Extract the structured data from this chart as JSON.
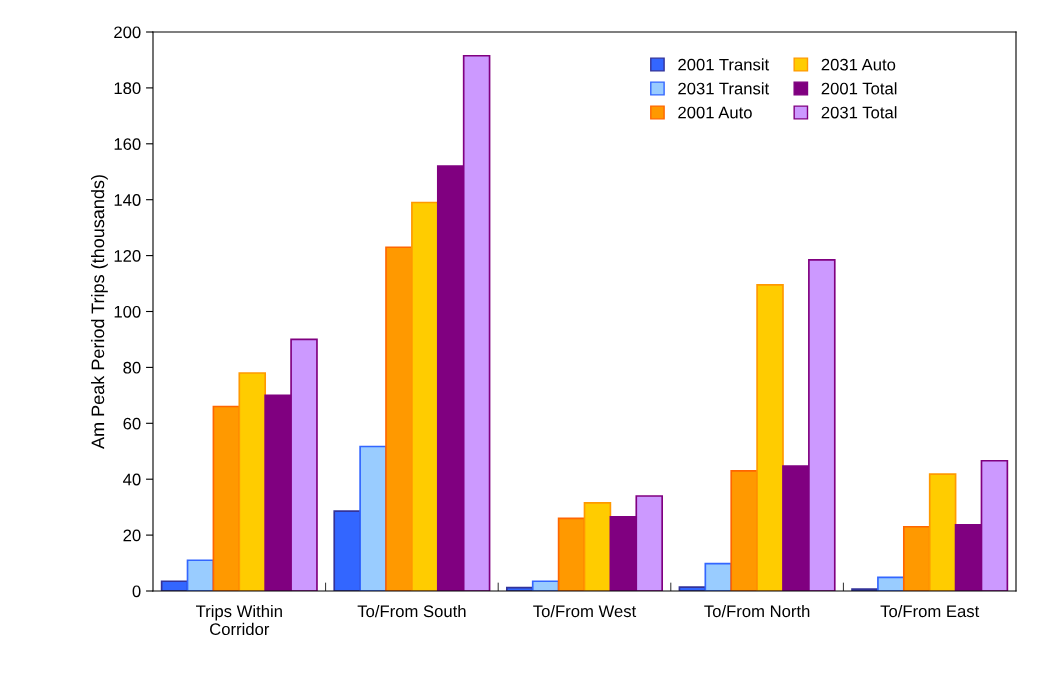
{
  "chart_data": {
    "type": "bar",
    "ylabel": "Am Peak Period Trips (thousands)",
    "categories": [
      "Trips Within\nCorridor",
      "To/From South",
      "To/From West",
      "To/From North",
      "To/From East"
    ],
    "series": [
      {
        "name": "2001 Transit",
        "color": "#3366ff",
        "values": [
          3.5,
          28.6,
          1.2,
          1.4,
          0.7
        ]
      },
      {
        "name": "2031 Transit",
        "color": "#99ccff",
        "values": [
          11,
          51.7,
          3.5,
          9.8,
          4.9
        ]
      },
      {
        "name": "2001 Auto",
        "color": "#ff9900",
        "values": [
          66,
          123,
          26,
          43,
          23
        ]
      },
      {
        "name": "2031 Auto",
        "color": "#ffcc00",
        "values": [
          78,
          139,
          31.5,
          109.5,
          41.8
        ]
      },
      {
        "name": "2001 Total",
        "color": "#800080",
        "values": [
          70,
          152,
          26.5,
          44.7,
          23.7
        ]
      },
      {
        "name": "2031 Total",
        "color": "#cc99ff",
        "values": [
          90,
          191.5,
          34,
          118.5,
          46.6
        ]
      }
    ],
    "ylim": [
      0,
      200
    ],
    "yticks": [
      0,
      20,
      40,
      60,
      80,
      100,
      120,
      140,
      160,
      180,
      200
    ],
    "grid": false,
    "legend": "top right"
  }
}
